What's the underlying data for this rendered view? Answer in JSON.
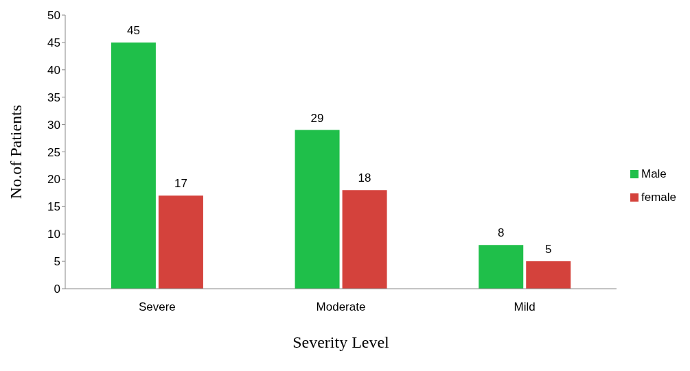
{
  "chart_data": {
    "type": "bar",
    "xlabel": "Severity Level",
    "ylabel": "No.of Patients",
    "categories": [
      "Severe",
      "Moderate",
      "Mild"
    ],
    "series": [
      {
        "name": "Male",
        "color": "#1fbf4a",
        "values": [
          45,
          29,
          8
        ]
      },
      {
        "name": "female",
        "color": "#d4423c",
        "values": [
          17,
          18,
          5
        ]
      }
    ],
    "ylim": [
      0,
      50
    ],
    "yticks": [
      0,
      5,
      10,
      15,
      20,
      25,
      30,
      35,
      40,
      45,
      50
    ],
    "grid": false,
    "legend": "right",
    "data_labels": true
  }
}
